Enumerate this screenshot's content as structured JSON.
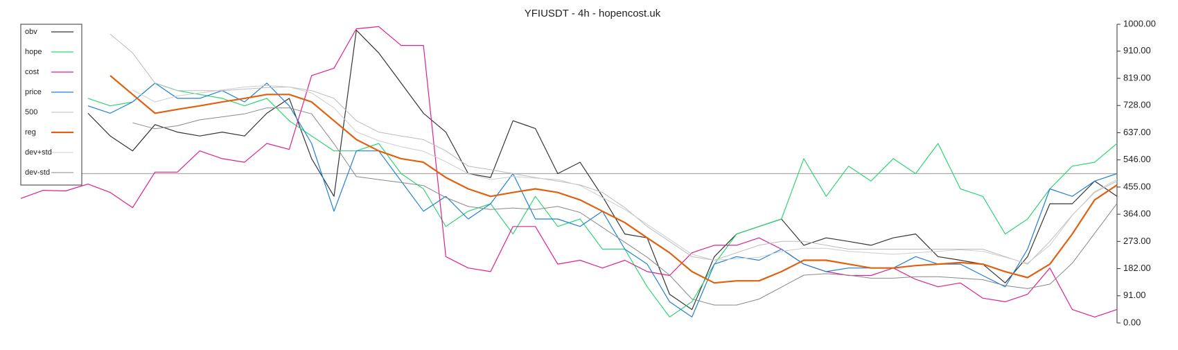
{
  "chart_data": {
    "type": "line",
    "title": "YFIUSDT - 4h - hopencost.uk",
    "ylim": [
      0,
      1000
    ],
    "yticks": [
      {
        "value": 0,
        "label": "0.00"
      },
      {
        "value": 91,
        "label": "91.00"
      },
      {
        "value": 182,
        "label": "182.00"
      },
      {
        "value": 273,
        "label": "273.00"
      },
      {
        "value": 364,
        "label": "364.00"
      },
      {
        "value": 455,
        "label": "455.00"
      },
      {
        "value": 546,
        "label": "546.00"
      },
      {
        "value": 637,
        "label": "637.00"
      },
      {
        "value": 728,
        "label": "728.00"
      },
      {
        "value": 819,
        "label": "819.00"
      },
      {
        "value": 910,
        "label": "910.00"
      },
      {
        "value": 1000,
        "label": "1000.00"
      }
    ],
    "hline": 500,
    "legend": "upper left",
    "series": [
      {
        "name": "obv",
        "color": "#333333",
        "width": 1.2,
        "values": [
          null,
          null,
          null,
          702,
          626,
          576,
          664,
          639,
          626,
          639,
          626,
          702,
          752,
          550,
          424,
          980,
          904,
          803,
          702,
          639,
          500,
          487,
          677,
          651,
          500,
          538,
          424,
          298,
          285,
          96,
          45,
          222,
          298,
          323,
          348,
          260,
          285,
          273,
          260,
          285,
          298,
          222,
          210,
          197,
          134,
          222,
          399,
          399,
          475,
          424
        ]
      },
      {
        "name": "hope",
        "color": "#2ed573",
        "width": 1.2,
        "values": [
          null,
          null,
          null,
          752,
          727,
          740,
          803,
          778,
          765,
          752,
          727,
          752,
          677,
          626,
          576,
          576,
          601,
          500,
          449,
          323,
          374,
          399,
          298,
          424,
          323,
          348,
          247,
          247,
          121,
          20,
          71,
          197,
          298,
          323,
          348,
          550,
          424,
          525,
          475,
          550,
          500,
          601,
          449,
          424,
          298,
          348,
          449,
          525,
          538,
          601
        ]
      },
      {
        "name": "cost",
        "color": "#e0208a",
        "width": 1.2,
        "values": [
          417,
          444,
          442,
          465,
          437,
          386,
          505,
          505,
          576,
          550,
          538,
          601,
          581,
          828,
          853,
          985,
          992,
          929,
          929,
          222,
          184,
          172,
          323,
          323,
          197,
          210,
          184,
          210,
          172,
          159,
          235,
          260,
          260,
          285,
          247,
          197,
          172,
          159,
          159,
          184,
          146,
          121,
          134,
          83,
          71,
          96,
          184,
          45,
          20,
          45
        ]
      },
      {
        "name": "price",
        "color": "#1f7fd8",
        "width": 1.2,
        "values": [
          null,
          null,
          null,
          727,
          702,
          740,
          803,
          752,
          752,
          778,
          740,
          803,
          727,
          601,
          374,
          576,
          576,
          475,
          374,
          424,
          348,
          399,
          500,
          348,
          348,
          323,
          374,
          247,
          197,
          71,
          20,
          197,
          222,
          210,
          247,
          197,
          172,
          184,
          184,
          184,
          222,
          197,
          197,
          159,
          121,
          247,
          449,
          424,
          475,
          500
        ]
      },
      {
        "name": "500",
        "color": "#bbbbbb",
        "width": 1,
        "values": [
          null,
          null,
          null,
          null,
          967,
          904,
          803,
          778,
          778,
          778,
          783,
          788,
          790,
          778,
          752,
          677,
          639,
          626,
          614,
          576,
          525,
          513,
          500,
          487,
          475,
          462,
          437,
          386,
          323,
          273,
          222,
          210,
          235,
          260,
          273,
          273,
          260,
          247,
          247,
          247,
          247,
          247,
          247,
          247,
          222,
          197,
          273,
          361,
          437,
          475
        ]
      },
      {
        "name": "reg",
        "color": "#e0600f",
        "width": 2.2,
        "values": [
          null,
          null,
          null,
          null,
          828,
          765,
          702,
          715,
          727,
          740,
          752,
          765,
          765,
          740,
          677,
          614,
          576,
          550,
          538,
          487,
          449,
          424,
          437,
          449,
          437,
          412,
          374,
          336,
          285,
          235,
          172,
          134,
          141,
          141,
          172,
          210,
          210,
          197,
          184,
          184,
          192,
          197,
          202,
          197,
          172,
          152,
          197,
          298,
          412,
          462
        ]
      },
      {
        "name": "dev+std",
        "color": "#cccccc",
        "width": 1,
        "values": [
          null,
          null,
          null,
          null,
          null,
          780,
          740,
          760,
          770,
          780,
          790,
          795,
          790,
          770,
          720,
          640,
          610,
          590,
          575,
          540,
          500,
          480,
          490,
          485,
          480,
          460,
          420,
          380,
          330,
          280,
          230,
          210,
          215,
          220,
          240,
          250,
          250,
          240,
          235,
          230,
          235,
          240,
          245,
          240,
          220,
          200,
          260,
          360,
          440,
          480
        ]
      },
      {
        "name": "dev-std",
        "color": "#888888",
        "width": 1,
        "values": [
          null,
          null,
          null,
          null,
          null,
          670,
          650,
          660,
          680,
          690,
          700,
          720,
          720,
          700,
          600,
          490,
          480,
          470,
          460,
          420,
          390,
          380,
          385,
          380,
          390,
          370,
          320,
          270,
          220,
          160,
          80,
          60,
          60,
          80,
          120,
          160,
          165,
          160,
          150,
          150,
          155,
          155,
          150,
          145,
          125,
          115,
          130,
          200,
          300,
          400
        ]
      }
    ]
  }
}
